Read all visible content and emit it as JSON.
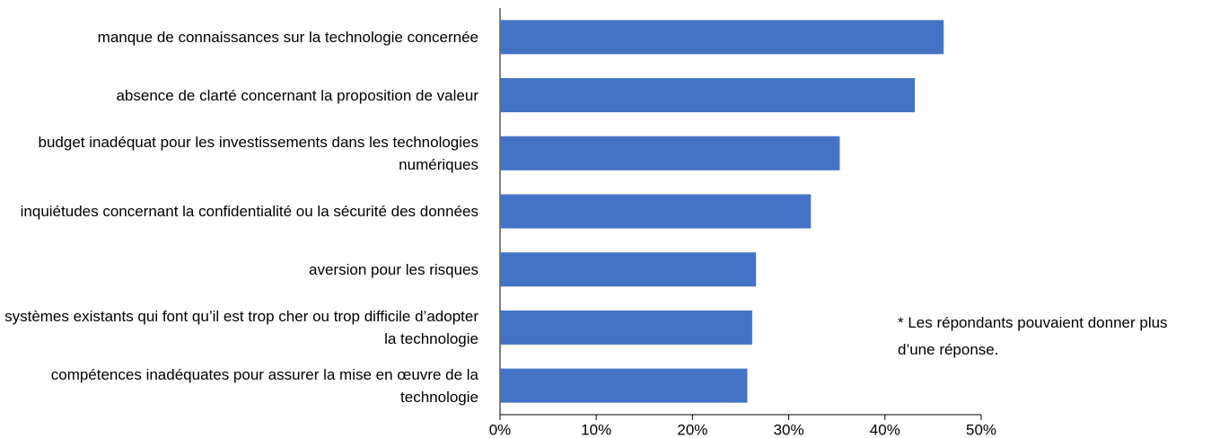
{
  "chart_data": {
    "type": "bar",
    "orientation": "horizontal",
    "categories": [
      "manque de connaissances sur la technologie concernée",
      "absence de clarté concernant la proposition de valeur",
      "budget inadéquat pour les investissements dans les technologies numériques",
      "inquiétudes concernant la confidentialité ou la sécurité des données",
      "aversion pour les risques",
      "systèmes existants qui font qu’il est trop cher ou trop difficile d’adopter la technologie",
      "compétences inadéquates pour assurer la mise en œuvre de la technologie"
    ],
    "values": [
      46.1,
      43.1,
      35.3,
      32.3,
      26.6,
      26.2,
      25.7
    ],
    "color": "#4472c4",
    "xlim": [
      0,
      50
    ],
    "xticks": [
      {
        "value": 0,
        "label": "0%"
      },
      {
        "value": 10,
        "label": "10%"
      },
      {
        "value": 20,
        "label": "20%"
      },
      {
        "value": 30,
        "label": "30%"
      },
      {
        "value": 40,
        "label": "40%"
      },
      {
        "value": 50,
        "label": "50%"
      }
    ],
    "annotation": "* Les répondants pouvaient donner plus d’une réponse."
  }
}
